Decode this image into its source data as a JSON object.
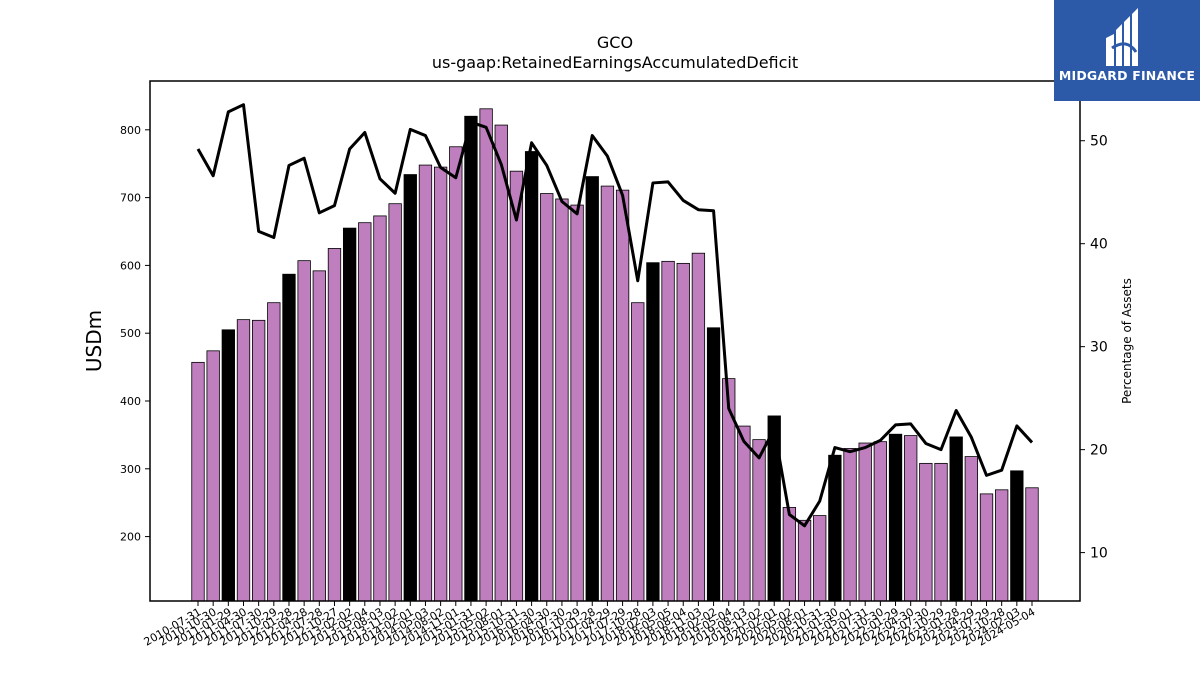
{
  "chart_data": {
    "type": "bar",
    "title": "GCO",
    "subtitle": "us-gaap:RetainedEarningsAccumulatedDeficit",
    "ylabel": "USDm",
    "y2label": "Percentage of Assets",
    "ylim": [
      105,
      872
    ],
    "y2lim": [
      5.3,
      55.8
    ],
    "yticks": [
      200,
      300,
      400,
      500,
      600,
      700,
      800
    ],
    "y2ticks": [
      10,
      20,
      30,
      40,
      50
    ],
    "colors": {
      "bar": "#bf7fbf",
      "bar_highlight": "#000000",
      "line": "#000000"
    },
    "categories": [
      "2010-07-31",
      "2010-10-30",
      "2011-01-29",
      "2011-04-30",
      "2011-07-30",
      "2011-10-29",
      "2012-01-28",
      "2012-04-28",
      "2012-07-28",
      "2012-10-27",
      "2013-02-02",
      "2013-05-04",
      "2013-08-03",
      "2013-11-02",
      "2014-02-01",
      "2014-05-03",
      "2014-08-02",
      "2014-11-01",
      "2015-01-31",
      "2015-05-02",
      "2015-08-01",
      "2015-10-31",
      "2016-01-30",
      "2016-04-30",
      "2016-07-30",
      "2016-10-29",
      "2017-01-28",
      "2017-04-29",
      "2017-07-29",
      "2017-10-28",
      "2018-02-03",
      "2018-05-05",
      "2018-08-04",
      "2018-11-03",
      "2019-02-02",
      "2019-05-04",
      "2019-08-03",
      "2019-11-02",
      "2020-02-01",
      "2020-05-02",
      "2020-08-01",
      "2020-10-31",
      "2021-01-30",
      "2021-05-01",
      "2021-07-31",
      "2021-10-30",
      "2022-01-29",
      "2022-04-30",
      "2022-07-30",
      "2022-10-29",
      "2023-01-28",
      "2023-04-29",
      "2023-07-29",
      "2023-10-28",
      "2024-02-03",
      "2024-05-04"
    ],
    "tick_labels": [
      "2010-07-31",
      "2010-10-30",
      "2011-01-29",
      "2011-04-30",
      "2011-07-30",
      "2011-10-29",
      "2012-01-28",
      "2012-04-28",
      "2012-07-28",
      "2012-10-27",
      "2013-02-02",
      "2013-05-04",
      "2013-08-03",
      "2013-11-02",
      "2014-02-01",
      "2014-05-03",
      "2014-08-02",
      "2014-11-01",
      "2015-01-31",
      "2015-05-02",
      "2015-08-01",
      "2015-10-31",
      "2016-01-30",
      "2016-04-30",
      "2016-07-30",
      "2016-10-29",
      "2017-01-28",
      "2017-04-29",
      "2017-07-29",
      "2017-10-28",
      "2018-02-03",
      "2018-05-05",
      "2018-08-04",
      "2018-11-03",
      "2019-02-02",
      "2019-05-04",
      "2019-08-03",
      "2019-11-02",
      "2020-02-01",
      "2020-05-02",
      "2020-08-01",
      "2020-10-31",
      "2021-01-30",
      "2021-05-01",
      "2021-07-31",
      "2021-10-30",
      "2022-01-29",
      "2022-04-30",
      "2022-07-30",
      "2022-10-29",
      "2023-01-28",
      "2023-04-29",
      "2023-07-29",
      "2023-10-28",
      "2024-02-03",
      "2024-05-04"
    ],
    "values": [
      457,
      474,
      505,
      520,
      519,
      545,
      587,
      607,
      592,
      625,
      655,
      663,
      673,
      691,
      734,
      748,
      745,
      775,
      820,
      831,
      807,
      739,
      768,
      706,
      698,
      689,
      731,
      717,
      711,
      545,
      604,
      606,
      603,
      618,
      508,
      433,
      363,
      343,
      378,
      243,
      224,
      231,
      320,
      330,
      338,
      340,
      351,
      349,
      308,
      308,
      347,
      318,
      263,
      269,
      297,
      272
    ],
    "highlight": [
      false,
      false,
      true,
      false,
      false,
      false,
      true,
      false,
      false,
      false,
      true,
      false,
      false,
      false,
      true,
      false,
      false,
      false,
      true,
      false,
      false,
      false,
      true,
      false,
      false,
      false,
      true,
      false,
      false,
      false,
      true,
      false,
      false,
      false,
      true,
      false,
      false,
      false,
      true,
      false,
      false,
      false,
      true,
      false,
      false,
      false,
      true,
      false,
      false,
      false,
      true,
      false,
      false,
      false,
      true,
      false
    ],
    "pct_assets": [
      49.2,
      46.6,
      52.8,
      53.5,
      41.2,
      40.6,
      47.6,
      48.3,
      43.0,
      43.7,
      49.2,
      50.8,
      46.3,
      44.9,
      51.1,
      50.5,
      47.4,
      46.4,
      51.8,
      51.3,
      47.7,
      42.3,
      49.8,
      47.6,
      44.1,
      42.9,
      50.5,
      48.5,
      44.7,
      36.4,
      45.9,
      46.0,
      44.2,
      43.3,
      43.2,
      24.0,
      20.8,
      19.2,
      22.0,
      13.7,
      12.6,
      15.0,
      20.2,
      19.8,
      20.2,
      20.9,
      22.4,
      22.5,
      20.6,
      20.0,
      23.8,
      21.2,
      17.5,
      18.0,
      22.3,
      20.7
    ]
  },
  "logo": {
    "text": "MIDGARD FINANCE"
  }
}
